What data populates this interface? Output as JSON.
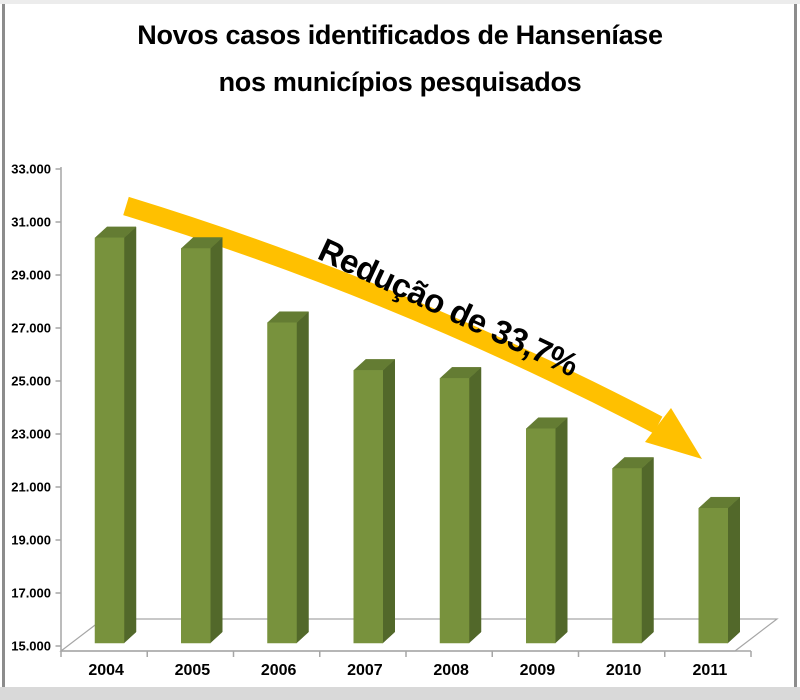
{
  "title": {
    "line1": "Novos casos identificados de Hanseníase",
    "line2": "nos municípios pesquisados"
  },
  "chart_data": {
    "type": "bar",
    "title": "Novos casos identificados de Hanseníase nos municípios pesquisados",
    "categories": [
      "2004",
      "2005",
      "2006",
      "2007",
      "2008",
      "2009",
      "2010",
      "2011"
    ],
    "values": [
      30400,
      30000,
      27200,
      25400,
      25100,
      23200,
      21700,
      20200
    ],
    "xlabel": "",
    "ylabel": "",
    "ylim": [
      15000,
      33000
    ],
    "ytick_values": [
      15000,
      17000,
      19000,
      21000,
      23000,
      25000,
      27000,
      29000,
      31000,
      33000
    ],
    "ytick_labels": [
      "15.000",
      "17.000",
      "19.000",
      "21.000",
      "23.000",
      "25.000",
      "27.000",
      "29.000",
      "31.000",
      "33.000"
    ],
    "grid": false,
    "legend": "none",
    "bar_style": "3d",
    "annotation": {
      "text": "Redução de 33,7%",
      "arrow_direction": "down-right"
    },
    "colors": {
      "bar_front": "#78923D",
      "bar_top": "#647C33",
      "bar_side": "#52682A",
      "axis": "#A6A6A6",
      "arrow": "#FFC000",
      "text": "#000000",
      "background": "#FFFFFF"
    }
  }
}
